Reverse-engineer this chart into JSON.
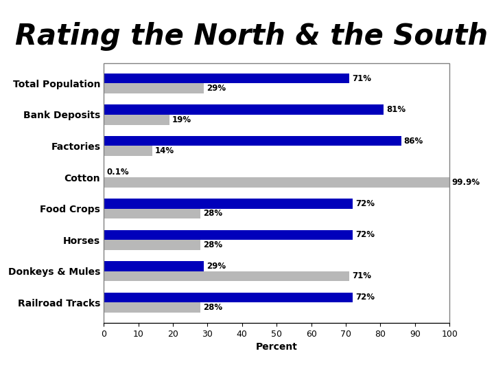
{
  "title": "Rating the North & the South",
  "categories": [
    "Railroad Tracks",
    "Donkeys & Mules",
    "Horses",
    "Food Crops",
    "Cotton",
    "Factories",
    "Bank Deposits",
    "Total Population"
  ],
  "north_values": [
    72,
    29,
    72,
    72,
    0.1,
    86,
    81,
    71
  ],
  "south_values": [
    28,
    71,
    28,
    28,
    99.9,
    14,
    19,
    29
  ],
  "north_labels": [
    "72%",
    "29%",
    "72%",
    "72%",
    "0.1%",
    "86%",
    "81%",
    "71%"
  ],
  "south_labels": [
    "28%",
    "71%",
    "28%",
    "28%",
    "99.9%",
    "14%",
    "19%",
    "29%"
  ],
  "north_color": "#0000BB",
  "south_color": "#B8B8B8",
  "xlabel": "Percent",
  "xlim": [
    0,
    100
  ],
  "xticks": [
    0,
    10,
    20,
    30,
    40,
    50,
    60,
    70,
    80,
    90,
    100
  ],
  "title_fontsize": 30,
  "category_fontsize": 10,
  "tick_fontsize": 9,
  "bar_label_fontsize": 8.5,
  "legend_fontsize": 10,
  "background_color": "#ffffff"
}
